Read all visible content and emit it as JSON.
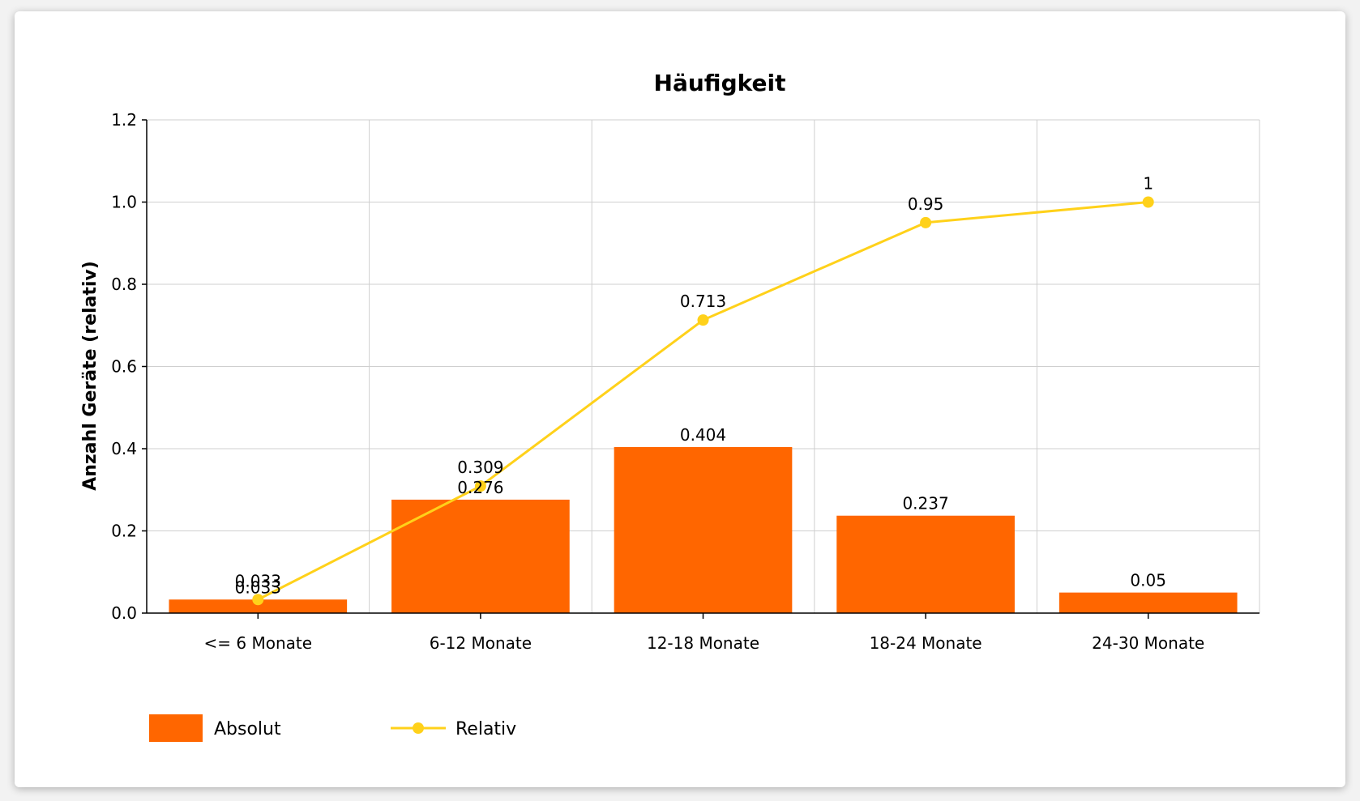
{
  "chart_data": {
    "type": "bar",
    "title": "Häufigkeit",
    "xlabel": "",
    "ylabel": "Anzahl Geräte (relativ)",
    "categories": [
      "<= 6 Monate",
      "6-12 Monate",
      "12-18 Monate",
      "18-24 Monate",
      "24-30 Monate"
    ],
    "ylim": [
      0,
      1.2
    ],
    "yticks": [
      "0.0",
      "0.2",
      "0.4",
      "0.6",
      "0.8",
      "1.0",
      "1.2"
    ],
    "grid": true,
    "legend_position": "bottom-left",
    "series": [
      {
        "name": "Absolut",
        "type": "bar",
        "color": "#ff6600",
        "values": [
          0.033,
          0.276,
          0.404,
          0.237,
          0.05
        ],
        "labels": [
          "0.033",
          "0.276",
          "0.404",
          "0.237",
          "0.05"
        ]
      },
      {
        "name": "Relativ",
        "type": "line",
        "color": "#ffd11a",
        "values": [
          0.033,
          0.309,
          0.713,
          0.95,
          1
        ],
        "labels": [
          "0.033",
          "0.309",
          "0.713",
          "0.95",
          "1"
        ]
      }
    ]
  }
}
